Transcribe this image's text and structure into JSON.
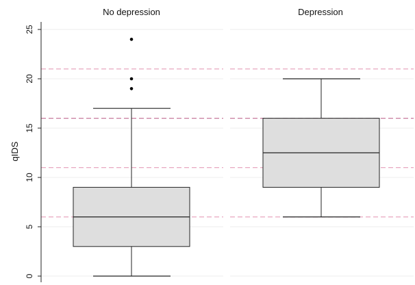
{
  "chart_data": {
    "type": "box",
    "ylabel": "qIDS",
    "ylim": [
      0,
      26
    ],
    "yticks": [
      "0",
      "5",
      "10",
      "15",
      "20",
      "25"
    ],
    "ytick_values": [
      0,
      5,
      10,
      15,
      20,
      25
    ],
    "grid": true,
    "reference_lines": [
      6,
      11,
      16,
      21
    ],
    "panels": [
      {
        "title": "No depression",
        "whisker_low": 0,
        "q1": 3,
        "median": 6,
        "q3": 9,
        "whisker_high": 17,
        "outliers": [
          19,
          20,
          24
        ]
      },
      {
        "title": "Depression",
        "whisker_low": 6,
        "q1": 9,
        "median": 12.5,
        "q3": 16,
        "whisker_high": 20,
        "outliers": []
      }
    ]
  },
  "colors": {
    "box_fill": "#dedede",
    "box_stroke": "#222222",
    "gridline": "#ececec",
    "reference_line": "#e8a8c0",
    "reference_line_strong": "#c77a9b",
    "outlier": "#000000"
  }
}
